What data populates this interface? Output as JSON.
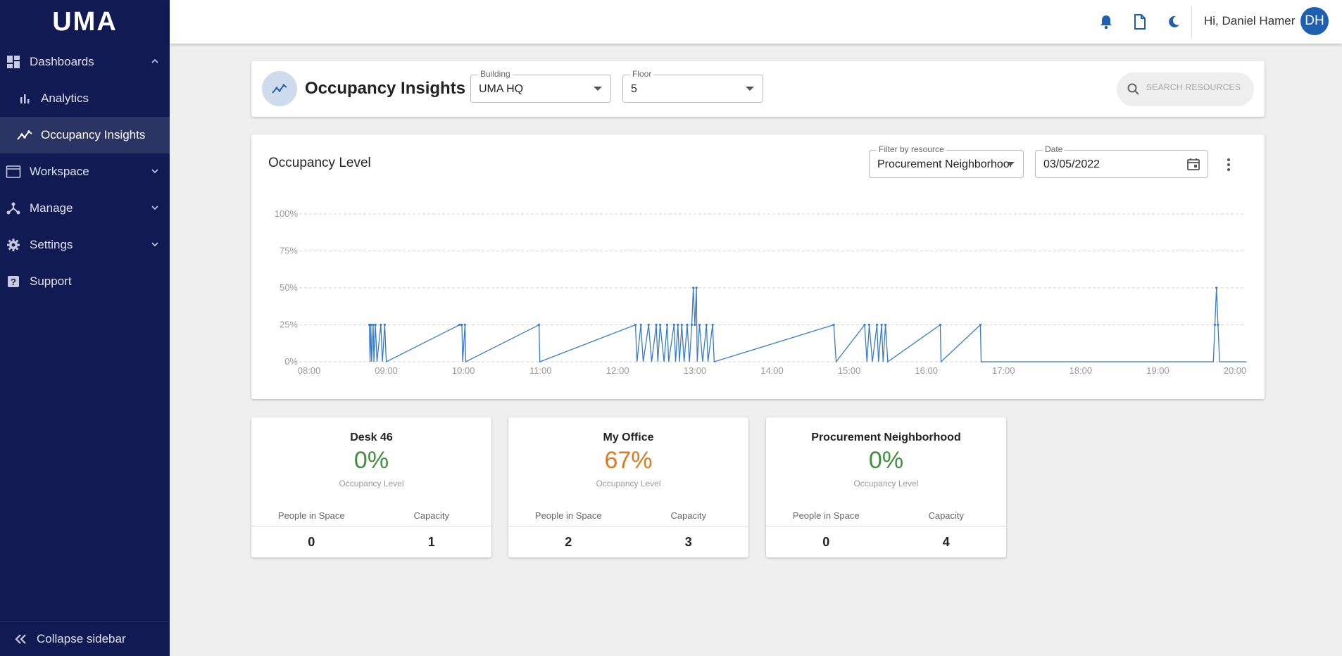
{
  "sidebar": {
    "logo": "UMA",
    "items": [
      {
        "label": "Dashboards",
        "icon": "dashboard-icon",
        "expanded": true
      },
      {
        "label": "Analytics",
        "icon": "bar-chart-icon",
        "sub": true
      },
      {
        "label": "Occupancy Insights",
        "icon": "trend-icon",
        "sub": true,
        "active": true
      },
      {
        "label": "Workspace",
        "icon": "window-icon",
        "expanded": false
      },
      {
        "label": "Manage",
        "icon": "network-icon",
        "expanded": false
      },
      {
        "label": "Settings",
        "icon": "gear-icon",
        "expanded": false
      },
      {
        "label": "Support",
        "icon": "help-icon"
      }
    ],
    "collapse_label": "Collapse sidebar"
  },
  "header": {
    "greeting": "Hi, Daniel Hamer",
    "avatar_initials": "DH",
    "icons": [
      "bell-icon",
      "document-icon",
      "moon-icon"
    ]
  },
  "title_bar": {
    "title": "Occupancy Insights",
    "building_label": "Building",
    "building_value": "UMA HQ",
    "floor_label": "Floor",
    "floor_value": "5",
    "search_placeholder": "SEARCH RESOURCES"
  },
  "chart_panel": {
    "title": "Occupancy Level",
    "filter_label": "Filter by resource",
    "filter_value": "Procurement Neighborhood",
    "date_label": "Date",
    "date_value": "03/05/2022"
  },
  "chart_data": {
    "type": "line",
    "title": "Occupancy Level",
    "xlabel": "",
    "ylabel": "",
    "x_ticks": [
      "08:00",
      "09:00",
      "10:00",
      "11:00",
      "12:00",
      "13:00",
      "14:00",
      "15:00",
      "16:00",
      "17:00",
      "18:00",
      "19:00",
      "20:00"
    ],
    "y_ticks": [
      "0%",
      "25%",
      "50%",
      "75%",
      "100%"
    ],
    "ylim": [
      0,
      100
    ],
    "xlim_hours": [
      8,
      20
    ],
    "grid": true,
    "color": "#3a7bc8",
    "points": [
      [
        8.78,
        25
      ],
      [
        8.79,
        0
      ],
      [
        8.8,
        25
      ],
      [
        8.81,
        0
      ],
      [
        8.83,
        25
      ],
      [
        8.84,
        0
      ],
      [
        8.86,
        25
      ],
      [
        8.88,
        0
      ],
      [
        8.93,
        25
      ],
      [
        8.95,
        0
      ],
      [
        8.98,
        25
      ],
      [
        9.0,
        0
      ],
      [
        9.95,
        25
      ],
      [
        9.98,
        25
      ],
      [
        9.99,
        0
      ],
      [
        10.02,
        25
      ],
      [
        10.03,
        0
      ],
      [
        10.98,
        25
      ],
      [
        10.99,
        0
      ],
      [
        12.23,
        25
      ],
      [
        12.25,
        0
      ],
      [
        12.3,
        25
      ],
      [
        12.33,
        0
      ],
      [
        12.4,
        25
      ],
      [
        12.44,
        0
      ],
      [
        12.5,
        25
      ],
      [
        12.52,
        0
      ],
      [
        12.55,
        25
      ],
      [
        12.6,
        0
      ],
      [
        12.64,
        25
      ],
      [
        12.66,
        0
      ],
      [
        12.73,
        25
      ],
      [
        12.75,
        0
      ],
      [
        12.78,
        25
      ],
      [
        12.8,
        0
      ],
      [
        12.83,
        25
      ],
      [
        12.86,
        0
      ],
      [
        12.9,
        25
      ],
      [
        12.93,
        0
      ],
      [
        12.96,
        25
      ],
      [
        12.98,
        50
      ],
      [
        13.0,
        25
      ],
      [
        13.02,
        50
      ],
      [
        13.03,
        0
      ],
      [
        13.06,
        25
      ],
      [
        13.1,
        0
      ],
      [
        13.15,
        25
      ],
      [
        13.17,
        0
      ],
      [
        13.23,
        25
      ],
      [
        13.25,
        0
      ],
      [
        14.8,
        25
      ],
      [
        14.83,
        0
      ],
      [
        15.2,
        25
      ],
      [
        15.23,
        0
      ],
      [
        15.26,
        25
      ],
      [
        15.3,
        0
      ],
      [
        15.36,
        25
      ],
      [
        15.38,
        0
      ],
      [
        15.42,
        25
      ],
      [
        15.44,
        0
      ],
      [
        15.47,
        25
      ],
      [
        15.5,
        0
      ],
      [
        16.18,
        25
      ],
      [
        16.19,
        0
      ],
      [
        16.7,
        25
      ],
      [
        16.71,
        0
      ],
      [
        19.72,
        0
      ],
      [
        19.74,
        25
      ],
      [
        19.76,
        50
      ],
      [
        19.78,
        25
      ],
      [
        19.8,
        0
      ],
      [
        20.15,
        0
      ]
    ]
  },
  "stats": [
    {
      "name": "Desk 46",
      "percent": "0%",
      "sub": "Occupancy Level",
      "people_label": "People in Space",
      "capacity_label": "Capacity",
      "people": "0",
      "capacity": "1",
      "color": "#3f8f3f"
    },
    {
      "name": "My Office",
      "percent": "67%",
      "sub": "Occupancy Level",
      "people_label": "People in Space",
      "capacity_label": "Capacity",
      "people": "2",
      "capacity": "3",
      "color": "#e07a1f"
    },
    {
      "name": "Procurement Neighborhood",
      "percent": "0%",
      "sub": "Occupancy Level",
      "people_label": "People in Space",
      "capacity_label": "Capacity",
      "people": "0",
      "capacity": "4",
      "color": "#3f8f3f"
    }
  ]
}
